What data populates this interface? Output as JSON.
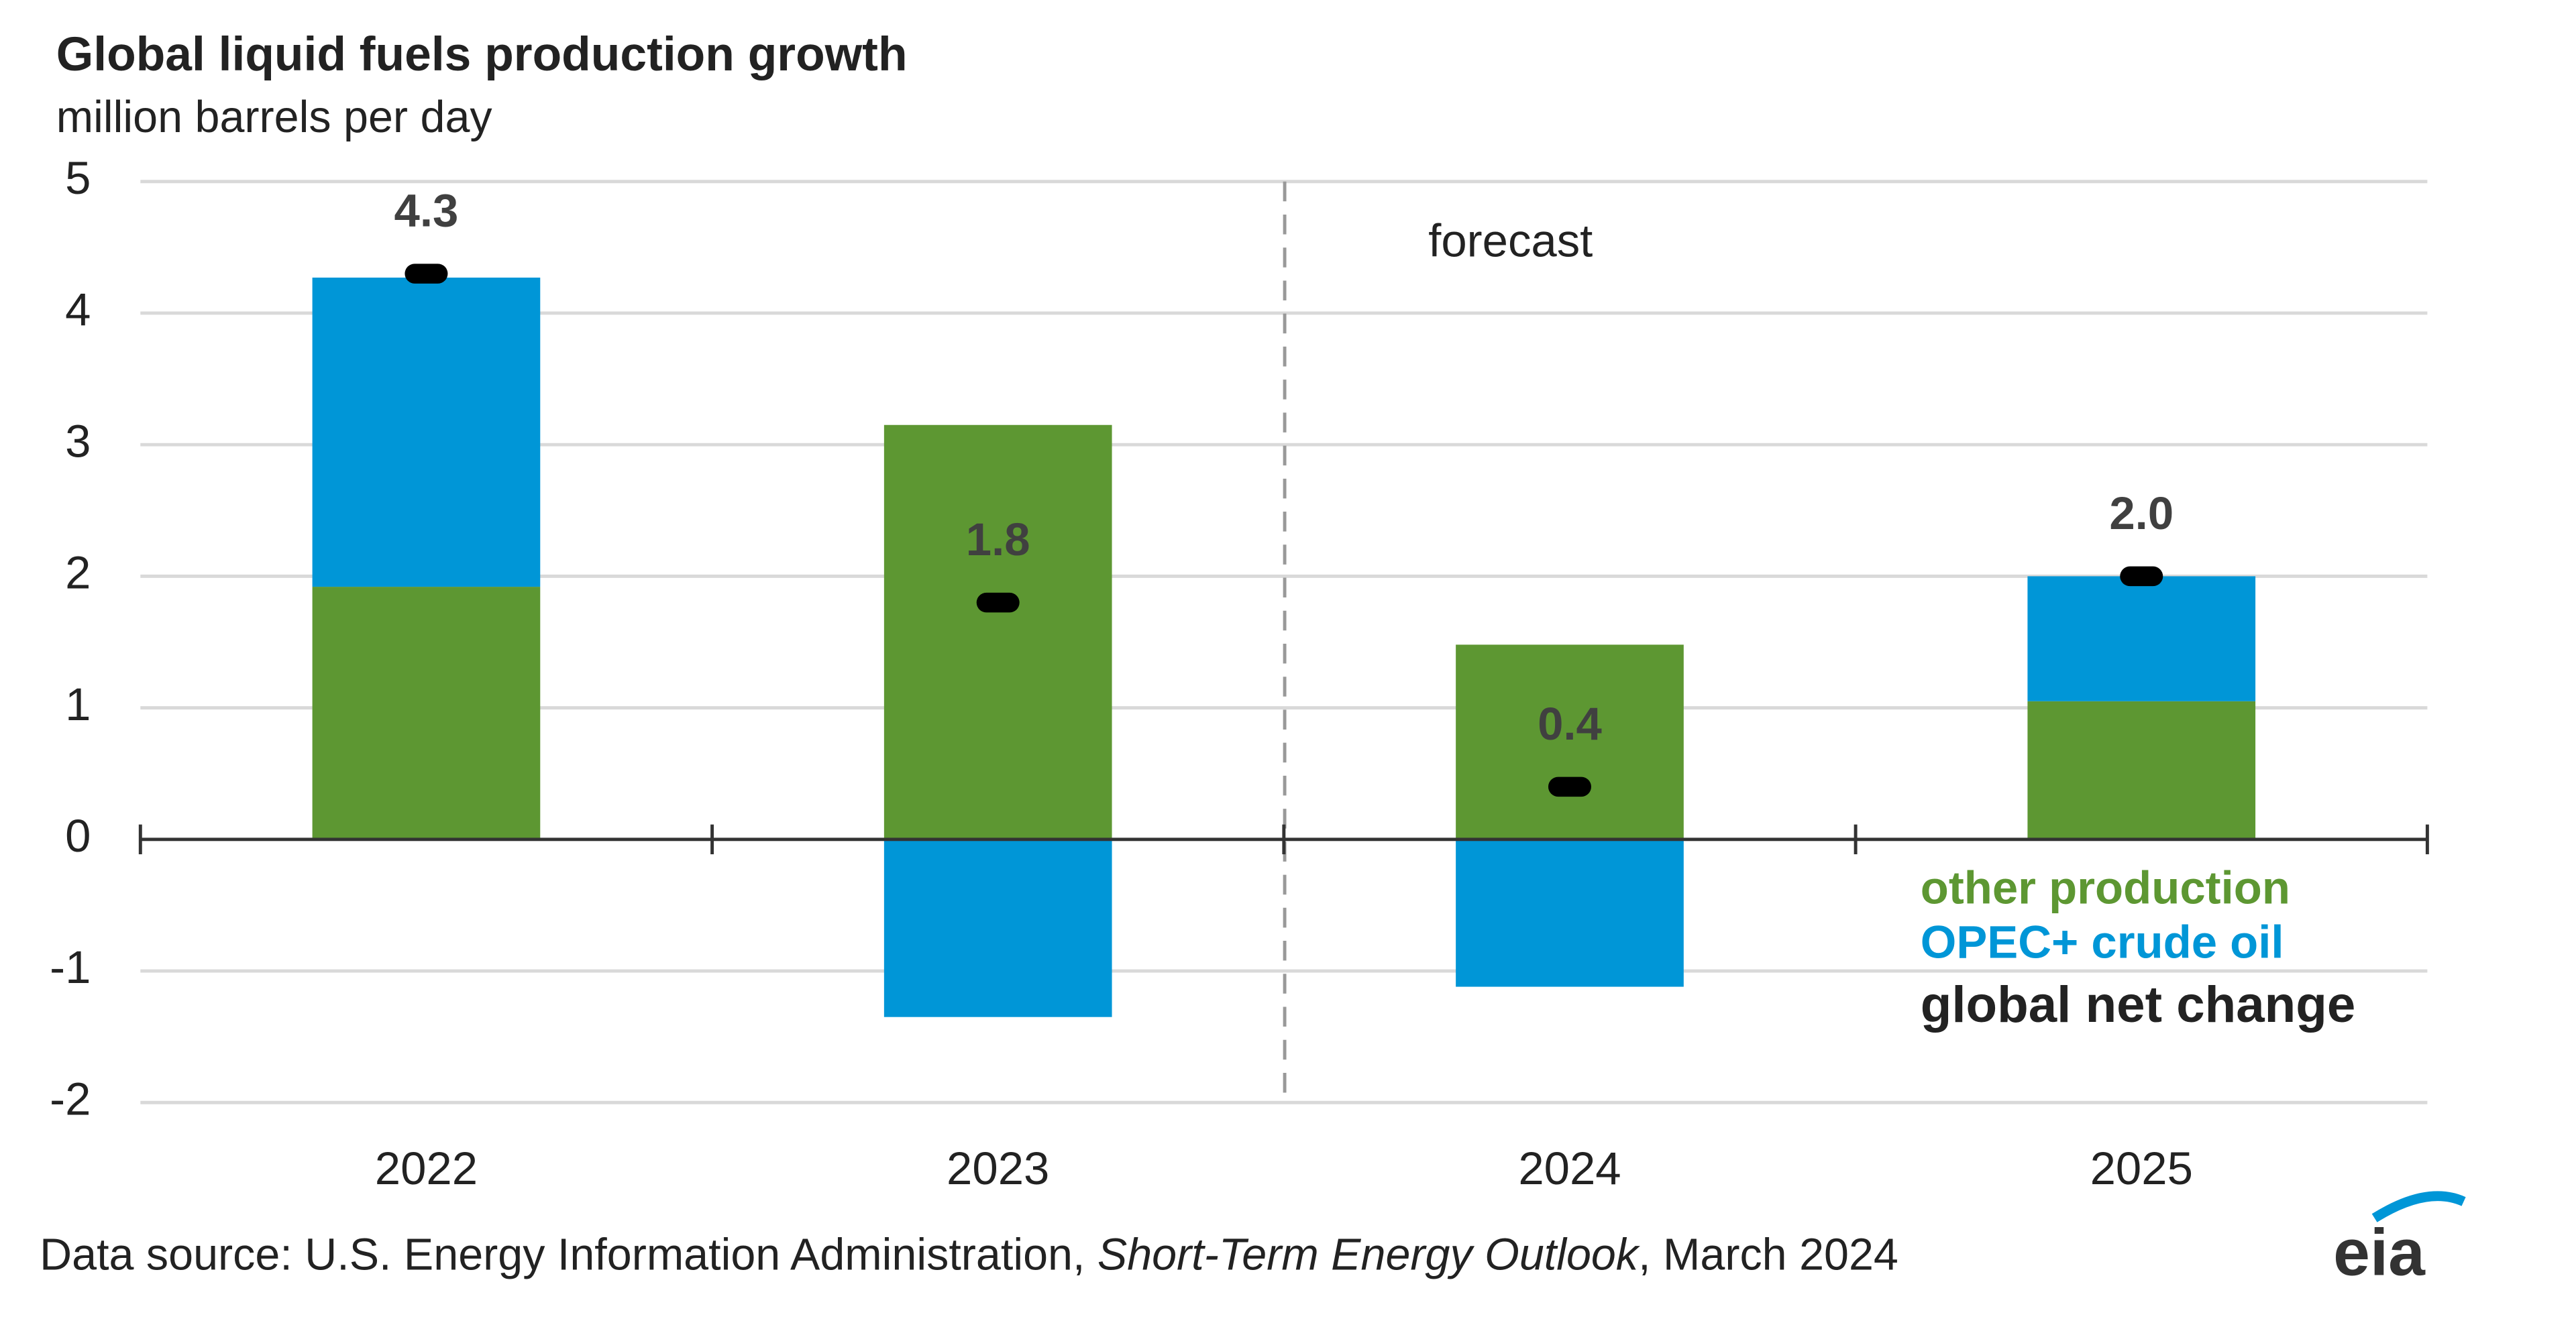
{
  "chart_data": {
    "type": "bar",
    "title": "Global liquid fuels production growth",
    "subtitle": "million barrels per day",
    "annotation": "forecast",
    "categories": [
      "2022",
      "2023",
      "2024",
      "2025"
    ],
    "series": [
      {
        "name": "other production",
        "color": "#5d9732",
        "values": [
          1.92,
          3.15,
          1.48,
          1.05
        ]
      },
      {
        "name": "OPEC+ crude oil",
        "color": "#0096d7",
        "values": [
          2.35,
          -1.35,
          -1.12,
          0.95
        ]
      }
    ],
    "net_change": {
      "name": "global net change",
      "color": "#000000",
      "values": [
        4.3,
        1.8,
        0.4,
        2.0
      ],
      "value_labels": [
        "4.3",
        "1.8",
        "0.4",
        "2.0"
      ]
    },
    "ylim": [
      -2,
      5
    ],
    "yticks": [
      -2,
      -1,
      0,
      1,
      2,
      3,
      4,
      5
    ],
    "grid": true,
    "source": {
      "prefix": "Data source: U.S. Energy Information Administration, ",
      "publication": "Short-Term Energy Outlook",
      "suffix": ", March 2024"
    },
    "logo": "eia"
  }
}
